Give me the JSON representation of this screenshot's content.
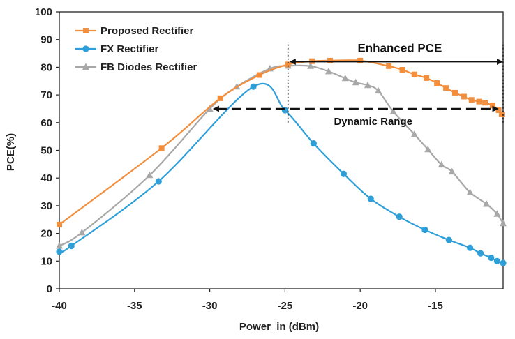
{
  "chart_data": {
    "type": "line",
    "title": "",
    "xlabel": "Power_in (dBm)",
    "ylabel": "PCE(%)",
    "xlim": [
      -40,
      -10.5
    ],
    "ylim": [
      0,
      100
    ],
    "x_ticks": [
      -40,
      -35,
      -30,
      -25,
      -20,
      -15
    ],
    "x_tick_labels": [
      "-40",
      "-35",
      "-30",
      "-25",
      "-20",
      "-15"
    ],
    "y_ticks": [
      0,
      10,
      20,
      30,
      40,
      50,
      60,
      70,
      80,
      90,
      100
    ],
    "y_tick_labels": [
      "0",
      "10",
      "20",
      "30",
      "40",
      "50",
      "60",
      "70",
      "80",
      "90",
      "100"
    ],
    "grid": false,
    "legend_position": "top-left",
    "series": [
      {
        "name": "Proposed Rectifier",
        "color": "#f28e3c",
        "marker": "square",
        "points": [
          [
            -40,
            23.2
          ],
          [
            -33.2,
            50.8
          ],
          [
            -29.3,
            68.8
          ],
          [
            -26.7,
            77.2
          ],
          [
            -24.8,
            81.0
          ],
          [
            -23.2,
            82.2
          ],
          [
            -22.0,
            82.4
          ],
          [
            -20.0,
            82.4
          ],
          [
            -18.1,
            80.4
          ],
          [
            -17.2,
            79.1
          ],
          [
            -16.4,
            77.4
          ],
          [
            -15.6,
            76.1
          ],
          [
            -14.9,
            74.3
          ],
          [
            -14.3,
            72.5
          ],
          [
            -13.7,
            70.8
          ],
          [
            -13.1,
            69.4
          ],
          [
            -12.6,
            68.2
          ],
          [
            -12.1,
            67.6
          ],
          [
            -11.7,
            67.2
          ],
          [
            -11.2,
            66.2
          ],
          [
            -10.8,
            64.5
          ],
          [
            -10.6,
            63.0
          ]
        ]
      },
      {
        "name": "FX Rectifier",
        "color": "#2e9fd8",
        "marker": "circle",
        "points": [
          [
            -40,
            13.4
          ],
          [
            -39.2,
            15.5
          ],
          [
            -33.4,
            38.8
          ],
          [
            -27.1,
            73.0
          ],
          [
            -25.0,
            64.5
          ],
          [
            -23.1,
            52.5
          ],
          [
            -21.1,
            41.5
          ],
          [
            -19.3,
            32.5
          ],
          [
            -17.4,
            26.0
          ],
          [
            -15.7,
            21.3
          ],
          [
            -14.1,
            17.6
          ],
          [
            -12.7,
            14.8
          ],
          [
            -12.0,
            12.8
          ],
          [
            -11.3,
            11.2
          ],
          [
            -10.9,
            10.0
          ],
          [
            -10.5,
            9.3
          ]
        ]
      },
      {
        "name": "FB Diodes Rectifier",
        "color": "#a8a8a8",
        "marker": "triangle",
        "points": [
          [
            -40,
            15.5
          ],
          [
            -38.5,
            20.3
          ],
          [
            -34.0,
            41.0
          ],
          [
            -30.0,
            65.0
          ],
          [
            -28.2,
            73.0
          ],
          [
            -26.0,
            79.5
          ],
          [
            -24.8,
            80.5
          ],
          [
            -23.3,
            80.4
          ],
          [
            -22.1,
            78.5
          ],
          [
            -21.0,
            76.0
          ],
          [
            -20.3,
            74.5
          ],
          [
            -19.5,
            73.5
          ],
          [
            -18.8,
            71.5
          ],
          [
            -17.8,
            64.0
          ],
          [
            -16.4,
            55.8
          ],
          [
            -15.5,
            50.3
          ],
          [
            -14.6,
            44.8
          ],
          [
            -13.9,
            42.3
          ],
          [
            -12.7,
            34.8
          ],
          [
            -11.6,
            30.6
          ],
          [
            -10.9,
            27.0
          ],
          [
            -10.5,
            23.6
          ]
        ]
      }
    ],
    "annotations": [
      {
        "text": "Enhanced PCE",
        "from_x": -24.7,
        "to_x": -10.5,
        "y": 82.0,
        "style": "solid-double-arrow"
      },
      {
        "text": "Dynamic Range",
        "from_x": -29.8,
        "to_x": -10.8,
        "y": 65.0,
        "style": "dashed-double-arrow"
      }
    ],
    "reference_lines": [
      {
        "x": -24.8,
        "y_from": 60.0,
        "y_to": 89.0,
        "style": "dotted"
      },
      {
        "x": -10.5,
        "y_from": 60.0,
        "y_to": 89.0,
        "style": "dotted"
      }
    ]
  }
}
